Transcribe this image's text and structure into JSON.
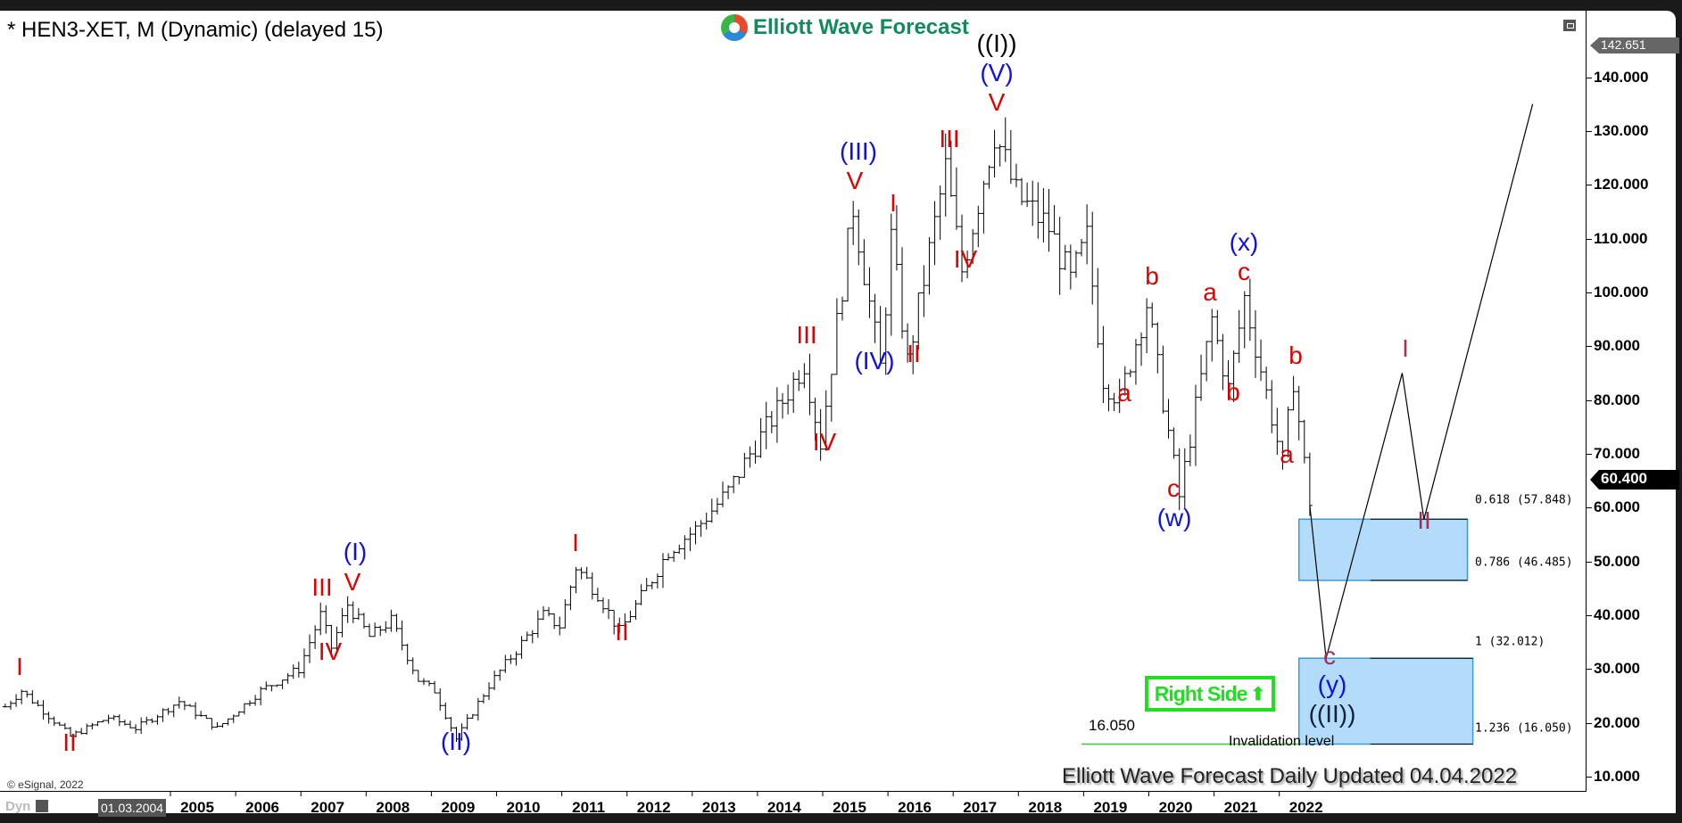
{
  "title": "* HEN3-XET, M (Dynamic) (delayed 15)",
  "logo_text": "Elliott Wave Forecast",
  "footer": "Elliott Wave Forecast Daily Updated 04.04.2022",
  "copyright": "© eSignal, 2022",
  "dyn_label": "Dyn",
  "cursor_date": "01.03.2004",
  "high_tag": "142.651",
  "last_price_tag": "60.400",
  "right_side_label": "Right Side",
  "invalidation_value": "16.050",
  "invalidation_label": "Invalidation level",
  "colors": {
    "wave_red": "#e00000",
    "wave_blue": "#1010e0",
    "box_fill": "#b3dcfa",
    "box_border": "#3a9ad9",
    "right_side_green": "#22dd22",
    "invalidation_line": "#33cc33"
  },
  "wave_labels": [
    "I",
    "II",
    "III",
    "IV",
    "V",
    "(I)",
    "(II)",
    "I",
    "II",
    "III",
    "IV",
    "V",
    "(III)",
    "(IV)",
    "II",
    "I",
    "III",
    "IV",
    "V",
    "(V)",
    "((I))",
    "a",
    "b",
    "c",
    "(w)",
    "a",
    "b",
    "c",
    "(x)",
    "b",
    "a",
    "I",
    "II",
    "c",
    "(y)",
    "((II))"
  ],
  "chart_data": {
    "type": "ohlc-bar",
    "symbol": "HEN3-XET",
    "interval": "M",
    "y_axis": {
      "ticks": [
        10,
        20,
        30,
        40,
        50,
        60,
        70,
        80,
        90,
        100,
        110,
        120,
        130,
        140
      ],
      "tick_labels": [
        "10.000",
        "20.000",
        "30.000",
        "40.000",
        "50.000",
        "60.000",
        "70.000",
        "80.000",
        "90.000",
        "100.000",
        "110.000",
        "120.000",
        "130.000",
        "140.000"
      ],
      "range": [
        5,
        150
      ]
    },
    "x_axis": {
      "tick_labels": [
        "2005",
        "2006",
        "2007",
        "2008",
        "2009",
        "2010",
        "2011",
        "2012",
        "2013",
        "2014",
        "2015",
        "2016",
        "2017",
        "2018",
        "2019",
        "2020",
        "2021",
        "2022"
      ]
    },
    "price_path": [
      [
        "2002-03",
        23
      ],
      [
        "2002-06",
        26
      ],
      [
        "2003-03",
        17.5
      ],
      [
        "2003-10",
        21
      ],
      [
        "2004-03",
        19
      ],
      [
        "2004-11",
        24
      ],
      [
        "2005-06",
        19
      ],
      [
        "2006-02",
        26
      ],
      [
        "2006-09",
        30
      ],
      [
        "2007-01",
        40
      ],
      [
        "2007-03",
        34
      ],
      [
        "2007-06",
        42
      ],
      [
        "2007-10",
        36
      ],
      [
        "2008-02",
        39
      ],
      [
        "2008-07",
        28
      ],
      [
        "2008-10",
        26
      ],
      [
        "2009-02",
        17
      ],
      [
        "2009-08",
        27
      ],
      [
        "2010-06",
        40
      ],
      [
        "2010-09",
        38
      ],
      [
        "2010-12",
        49
      ],
      [
        "2011-04",
        44
      ],
      [
        "2011-08",
        37
      ],
      [
        "2012-01",
        45
      ],
      [
        "2012-05",
        52
      ],
      [
        "2012-10",
        56
      ],
      [
        "2013-04",
        63
      ],
      [
        "2013-08",
        70
      ],
      [
        "2014-01",
        78
      ],
      [
        "2014-06",
        87
      ],
      [
        "2014-09",
        72
      ],
      [
        "2015-03",
        116
      ],
      [
        "2015-08",
        86
      ],
      [
        "2015-10",
        110
      ],
      [
        "2016-01",
        87
      ],
      [
        "2016-08",
        123
      ],
      [
        "2016-11",
        104
      ],
      [
        "2017-05",
        130
      ],
      [
        "2017-09",
        118
      ],
      [
        "2018-03",
        112
      ],
      [
        "2018-07",
        102
      ],
      [
        "2018-10",
        110
      ],
      [
        "2019-01",
        84
      ],
      [
        "2019-04",
        80
      ],
      [
        "2019-09",
        98
      ],
      [
        "2020-03",
        62
      ],
      [
        "2020-09",
        95
      ],
      [
        "2020-12",
        82
      ],
      [
        "2021-03",
        99
      ],
      [
        "2021-10",
        68
      ],
      [
        "2021-12",
        84
      ],
      [
        "2022-03",
        60.4
      ]
    ],
    "projection": [
      [
        "2022-03",
        60.4
      ],
      [
        "2022-06",
        32
      ],
      [
        "2023-08",
        85
      ],
      [
        "2023-12",
        57.848
      ],
      [
        "2025-08",
        135
      ]
    ],
    "fib_zones": [
      {
        "from": "2022-01",
        "to": "2024-08",
        "top": 57.848,
        "bottom": 46.485,
        "top_label": "0.618 (57.848)",
        "bottom_label": "0.786 (46.485)"
      },
      {
        "from": "2022-01",
        "to": "2024-09",
        "top": 32.012,
        "bottom": 16.05,
        "top_label": "1 (32.012)",
        "bottom_label": "1.236 (16.050)"
      }
    ],
    "invalidation_level": {
      "value": 16.05,
      "from": "2018-09"
    },
    "last_price": 60.4,
    "period_high": 142.651
  }
}
